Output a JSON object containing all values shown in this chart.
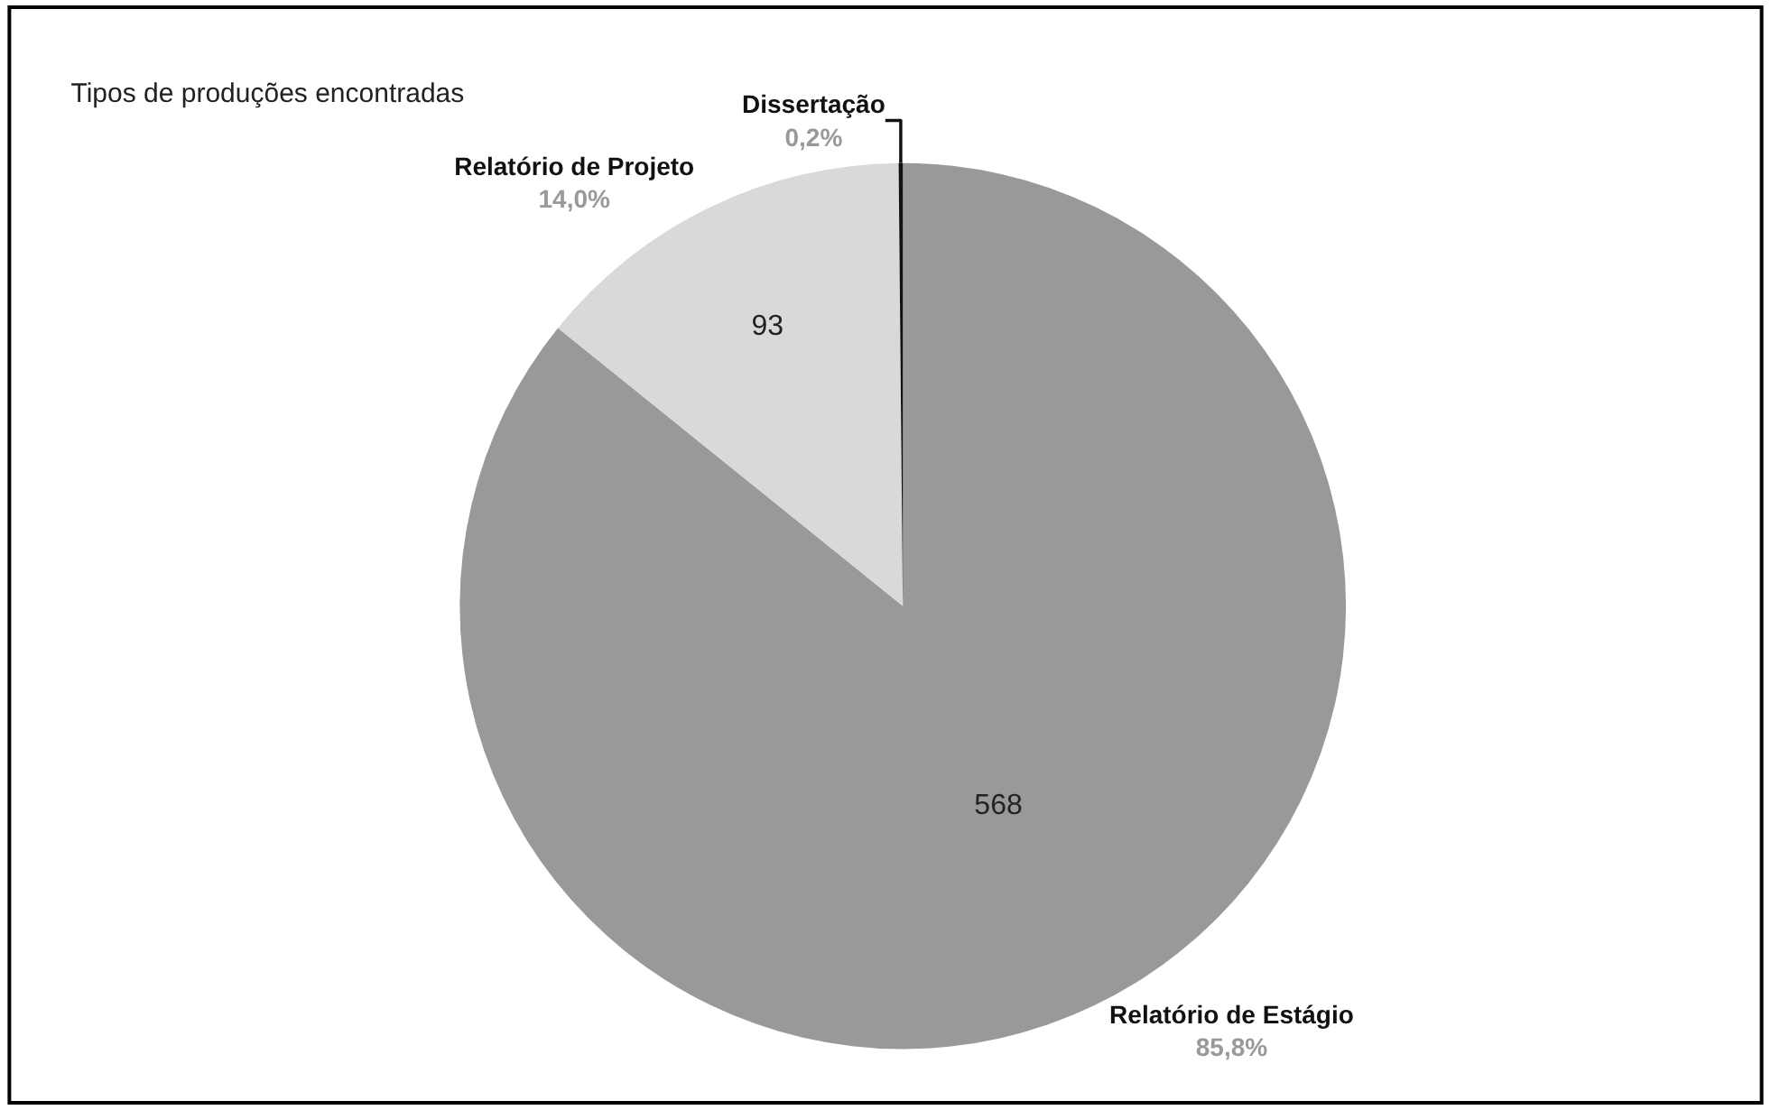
{
  "chart_data": {
    "type": "pie",
    "title": "Tipos de produções encontradas",
    "categories": [
      "Relatório de Estágio",
      "Relatório de Projeto",
      "Dissertação"
    ],
    "values": [
      568,
      93,
      1
    ],
    "colors": [
      "#999999",
      "#d9d9d9",
      "#111111"
    ],
    "value_labels": [
      "568",
      "93",
      null
    ],
    "annotations": [
      "85,8%",
      "14,0%",
      "0,2%"
    ],
    "legend": false
  }
}
